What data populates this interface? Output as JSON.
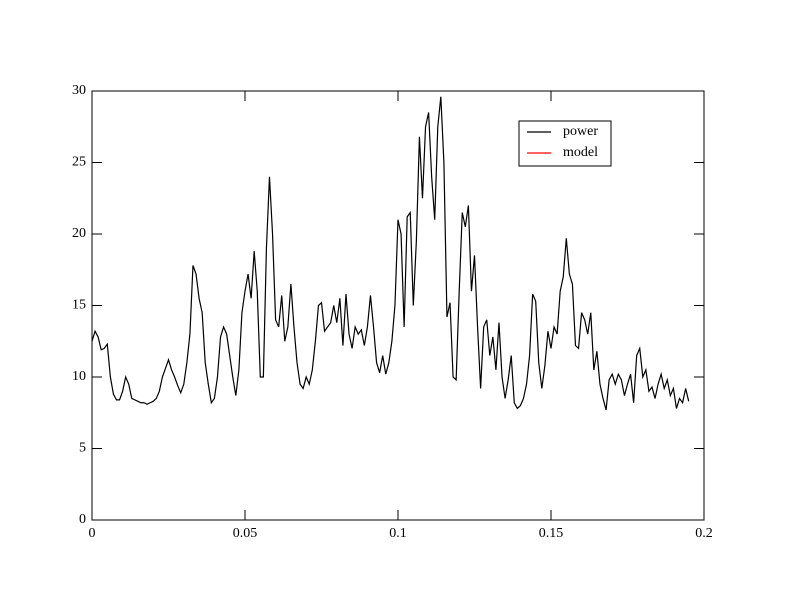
{
  "chart_data": {
    "type": "line",
    "x": [
      0,
      0.001,
      0.002,
      0.003,
      0.004,
      0.005,
      0.006,
      0.007,
      0.008,
      0.009,
      0.01,
      0.011,
      0.012,
      0.013,
      0.014,
      0.015,
      0.016,
      0.017,
      0.018,
      0.019,
      0.02,
      0.021,
      0.022,
      0.023,
      0.024,
      0.025,
      0.026,
      0.027,
      0.028,
      0.029,
      0.03,
      0.031,
      0.032,
      0.033,
      0.034,
      0.035,
      0.036,
      0.037,
      0.038,
      0.039,
      0.04,
      0.041,
      0.042,
      0.043,
      0.044,
      0.045,
      0.046,
      0.047,
      0.048,
      0.049,
      0.05,
      0.051,
      0.052,
      0.053,
      0.054,
      0.055,
      0.056,
      0.057,
      0.058,
      0.059,
      0.06,
      0.061,
      0.062,
      0.063,
      0.064,
      0.065,
      0.066,
      0.067,
      0.068,
      0.069,
      0.07,
      0.071,
      0.072,
      0.073,
      0.074,
      0.075,
      0.076,
      0.077,
      0.078,
      0.079,
      0.08,
      0.081,
      0.082,
      0.083,
      0.084,
      0.085,
      0.086,
      0.087,
      0.088,
      0.089,
      0.09,
      0.091,
      0.092,
      0.093,
      0.094,
      0.095,
      0.096,
      0.097,
      0.098,
      0.099,
      0.1,
      0.101,
      0.102,
      0.103,
      0.104,
      0.105,
      0.106,
      0.107,
      0.108,
      0.109,
      0.11,
      0.111,
      0.112,
      0.113,
      0.114,
      0.115,
      0.116,
      0.117,
      0.118,
      0.119,
      0.12,
      0.121,
      0.122,
      0.123,
      0.124,
      0.125,
      0.126,
      0.127,
      0.128,
      0.129,
      0.13,
      0.131,
      0.132,
      0.133,
      0.134,
      0.135,
      0.136,
      0.137,
      0.138,
      0.139,
      0.14,
      0.141,
      0.142,
      0.143,
      0.144,
      0.145,
      0.146,
      0.147,
      0.148,
      0.149,
      0.15,
      0.151,
      0.152,
      0.153,
      0.154,
      0.155,
      0.156,
      0.157,
      0.158,
      0.159,
      0.16,
      0.161,
      0.162,
      0.163,
      0.164,
      0.165,
      0.166,
      0.167,
      0.168,
      0.169,
      0.17,
      0.171,
      0.172,
      0.173,
      0.174,
      0.175,
      0.176,
      0.177,
      0.178,
      0.179,
      0.18,
      0.181,
      0.182,
      0.183,
      0.184,
      0.185,
      0.186,
      0.187,
      0.188,
      0.189,
      0.19,
      0.191,
      0.192,
      0.193,
      0.194,
      0.195
    ],
    "series": [
      {
        "name": "power",
        "color": "#000000",
        "values": [
          12.5,
          13.2,
          12.8,
          11.9,
          12,
          12.3,
          10,
          8.8,
          8.4,
          8.4,
          9,
          10,
          9.5,
          8.5,
          8.4,
          8.3,
          8.2,
          8.2,
          8.1,
          8.2,
          8.3,
          8.5,
          9,
          10,
          10.6,
          11.2,
          10.5,
          10,
          9.4,
          8.9,
          9.5,
          11,
          13,
          17.8,
          17.2,
          15.5,
          14.5,
          11,
          9.5,
          8.2,
          8.5,
          10,
          12.8,
          13.5,
          13,
          11.5,
          10,
          8.7,
          10.5,
          14.5,
          16,
          17.2,
          15.5,
          18.8,
          16,
          10,
          10,
          19,
          24,
          20,
          14,
          13.5,
          15.7,
          12.5,
          13.5,
          16.5,
          13.5,
          11,
          9.5,
          9.2,
          10,
          9.5,
          10.5,
          12.5,
          15,
          15.2,
          13.2,
          13.5,
          13.8,
          15,
          13.8,
          15.5,
          12.2,
          15.8,
          13,
          12,
          13.5,
          13,
          13.3,
          12.2,
          13.5,
          15.7,
          13.5,
          11,
          10.3,
          11.5,
          10.2,
          11,
          12.5,
          15,
          21,
          20,
          13.5,
          21.2,
          21.5,
          15,
          19.5,
          26.8,
          22.5,
          27.5,
          28.5,
          24,
          21,
          27.5,
          29.6,
          25,
          14.2,
          15.2,
          10,
          9.8,
          16,
          21.5,
          20.5,
          22,
          16,
          18.5,
          13.5,
          9.2,
          13.5,
          14,
          11.5,
          12.8,
          10.5,
          13.8,
          10,
          8.5,
          9.8,
          11.5,
          8.2,
          7.8,
          8,
          8.5,
          9.5,
          11.5,
          15.8,
          15.3,
          11,
          9.2,
          10.8,
          13.2,
          12,
          13.5,
          13,
          16,
          17,
          19.7,
          17.2,
          16.5,
          12.2,
          12,
          14.5,
          14,
          13,
          14.5,
          10.5,
          11.8,
          9.5,
          8.5,
          7.7,
          9.8,
          10.2,
          9.5,
          10.2,
          9.8,
          8.7,
          9.5,
          10.2,
          8.2,
          11.5,
          12,
          10,
          10.5,
          9,
          9.3,
          8.5,
          9.5,
          10.2,
          9.2,
          9.8,
          8.7,
          9.2,
          7.8,
          8.5,
          8.2,
          9.2,
          8.3
        ]
      },
      {
        "name": "model",
        "color": "#ff0000",
        "values": [
          null,
          null,
          null,
          null,
          null,
          null,
          null,
          null,
          null,
          null,
          null,
          null,
          null,
          null,
          null,
          null,
          null,
          null,
          null,
          null,
          null,
          null,
          null,
          null,
          null,
          null,
          null,
          null,
          null,
          null,
          null,
          null,
          null,
          null,
          null,
          null,
          null,
          null,
          null,
          null,
          null,
          null,
          null,
          null,
          null,
          null,
          null,
          null,
          null,
          null,
          null,
          null,
          null,
          null,
          null,
          null,
          null,
          null,
          null,
          null,
          null,
          null,
          null,
          null,
          null,
          null,
          null,
          null,
          null,
          null,
          null,
          null,
          null,
          null,
          null,
          null,
          null,
          null,
          null,
          null,
          null,
          null,
          null,
          null,
          null,
          null,
          null,
          null,
          null,
          null,
          null,
          null,
          null,
          null,
          null,
          null,
          null,
          null,
          null,
          null,
          null,
          null,
          null,
          null,
          null,
          null,
          null,
          null,
          null,
          null,
          null,
          null,
          null,
          null,
          null,
          null,
          null,
          null,
          null,
          null,
          null,
          null,
          null,
          null,
          null,
          null,
          null,
          null,
          null,
          null,
          null,
          null,
          null,
          null,
          null,
          null,
          null,
          null,
          null,
          null,
          null,
          null,
          null,
          null,
          null,
          null,
          null,
          null,
          null,
          null,
          null,
          null,
          null,
          null,
          null,
          null,
          null,
          null,
          null,
          null,
          null,
          null,
          null,
          null,
          null,
          null,
          null,
          null,
          null,
          null,
          null,
          null,
          null,
          null,
          null,
          null,
          null,
          null,
          null,
          null,
          null,
          null,
          null,
          null,
          null,
          null,
          null,
          null,
          null,
          null,
          null,
          null,
          null,
          null,
          null,
          null
        ]
      }
    ],
    "xlim": [
      0,
      0.2
    ],
    "xticks": [
      0,
      0.05,
      0.1,
      0.15,
      0.2
    ],
    "ylim": [
      0,
      30
    ],
    "yticks": [
      0,
      5,
      10,
      15,
      20,
      25,
      30
    ],
    "legend": "upper-right"
  }
}
